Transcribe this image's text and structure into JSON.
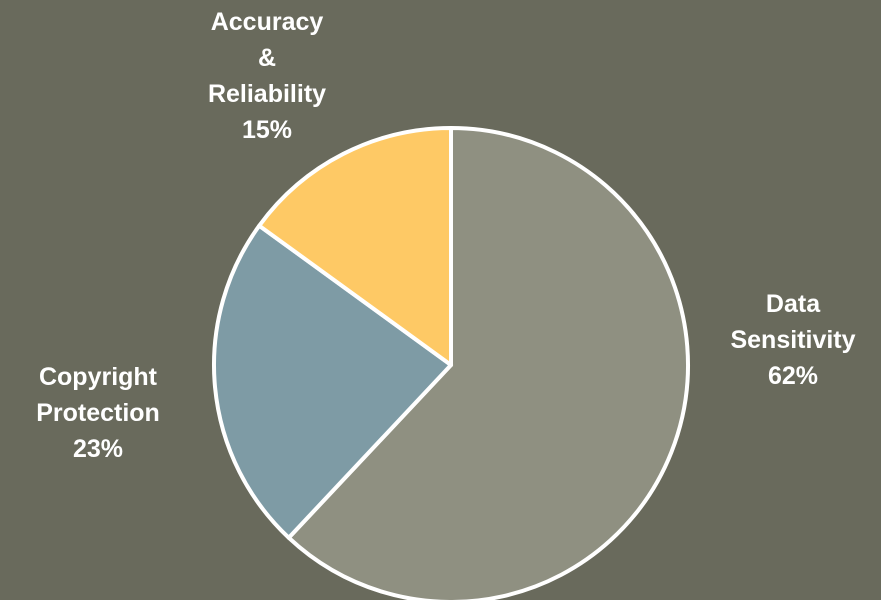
{
  "chart_data": {
    "type": "pie",
    "title": "",
    "background_color": "#696a5c",
    "slice_border_color": "#ffffff",
    "label_color": "#ffffff",
    "slices": [
      {
        "label_lines": [
          "Data",
          "Sensitivity"
        ],
        "value": 62,
        "value_label": "62%",
        "color": "#8f9081"
      },
      {
        "label_lines": [
          "Copyright",
          "Protection"
        ],
        "value": 23,
        "value_label": "23%",
        "color": "#7e9ba5"
      },
      {
        "label_lines": [
          "Accuracy",
          "&",
          "Reliability"
        ],
        "value": 15,
        "value_label": "15%",
        "color": "#fec965"
      }
    ]
  }
}
